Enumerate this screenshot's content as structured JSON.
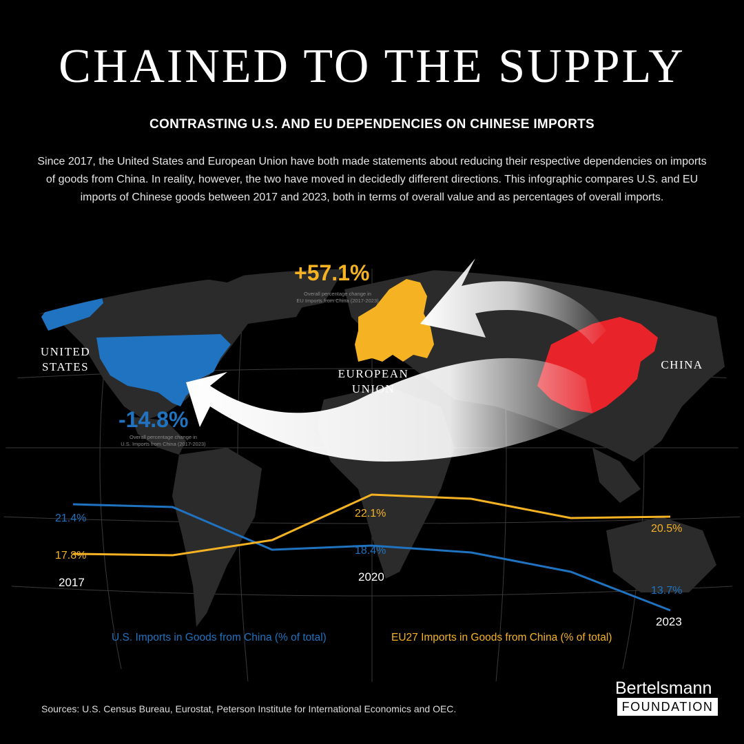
{
  "header": {
    "title": "CHAINED TO THE SUPPLY",
    "subtitle": "CONTRASTING U.S. AND EU DEPENDENCIES ON CHINESE IMPORTS",
    "intro": "Since 2017, the United States and European Union have both made statements about reducing their respective dependencies on imports of goods from China. In reality, however, the two have moved in decidedly different directions. This infographic compares U.S. and EU imports of Chinese goods between 2017 and 2023, both in terms of overall value and as percentages of overall imports."
  },
  "map": {
    "eu_change": "+57.1%",
    "eu_change_note_1": "Overall percentage change in",
    "eu_change_note_2": "EU Imports from China (2017-2023)",
    "us_change": "-14.8%",
    "us_change_note_1": "Overall percentage change in",
    "us_change_note_2": "U.S. Imports from China (2017-2023)",
    "us_label_1": "UNITED",
    "us_label_2": "STATES",
    "eu_label_1": "EUROPEAN",
    "eu_label_2": "UNION",
    "china_label": "CHINA"
  },
  "colors": {
    "us": "#1f73c0",
    "eu": "#f5b324",
    "china": "#e8232a",
    "land": "#2b2b2b"
  },
  "chart_data": {
    "type": "line",
    "x": [
      2017,
      2018,
      2019,
      2020,
      2021,
      2022,
      2023
    ],
    "series": [
      {
        "name": "U.S. Imports in Goods from China (% of total)",
        "values": [
          21.4,
          21.2,
          18.1,
          18.4,
          17.9,
          16.5,
          13.7
        ]
      },
      {
        "name": "EU27 Imports in Goods from China (% of total)",
        "values": [
          17.8,
          17.7,
          18.8,
          22.1,
          21.8,
          20.4,
          20.5
        ]
      }
    ],
    "data_labels": {
      "us": [
        "21.4%",
        "18.4%",
        "13.7%"
      ],
      "eu": [
        "17.8%",
        "22.1%",
        "20.5%"
      ]
    },
    "x_labels": [
      "2017",
      "2020",
      "2023"
    ],
    "ylim": [
      12,
      24
    ]
  },
  "legend": {
    "us": "U.S. Imports in Goods from China (% of total)",
    "eu": "EU27 Imports in Goods from China (% of total)"
  },
  "footer": {
    "sources": "Sources: U.S. Census Bureau, Eurostat, Peterson Institute for International Economics and OEC.",
    "logo_name": "Bertelsmann",
    "logo_sub": "FOUNDATION"
  }
}
